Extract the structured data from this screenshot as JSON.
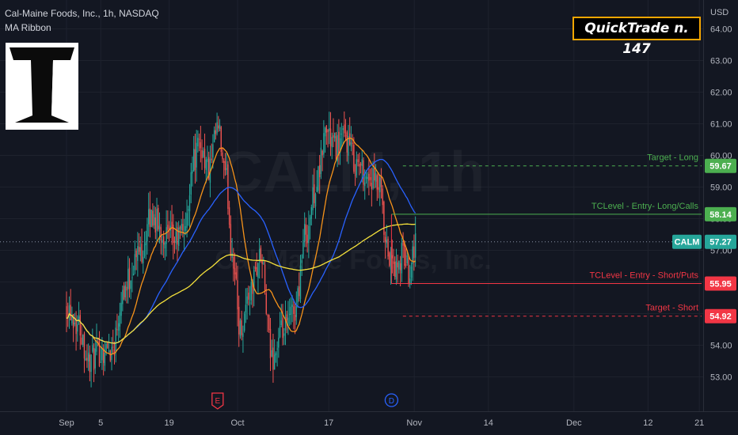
{
  "header": {
    "symbol_line": "Cal-Maine Foods, Inc., 1h, NASDAQ",
    "indicator": "MA Ribbon"
  },
  "badge": {
    "label": "QuickTrade n. 147"
  },
  "watermark": {
    "ticker": "CALM, 1h",
    "name": "Cal-Maine Foods, Inc."
  },
  "colors": {
    "background": "#131722",
    "up": "#26a69a",
    "down": "#ef5350",
    "ma_fast": "#f7931a",
    "ma_mid": "#2962ff",
    "ma_slow": "#f5e13b",
    "long": "#4caf50",
    "short": "#f23645"
  },
  "chart_data": {
    "type": "candlestick",
    "title": "Cal-Maine Foods, Inc., 1h, NASDAQ",
    "currency_label": "USD",
    "ylim": [
      52.1,
      64.4
    ],
    "y_ticks": [
      53.0,
      54.0,
      55.0,
      56.0,
      57.0,
      58.0,
      59.0,
      60.0,
      61.0,
      62.0,
      63.0,
      64.0
    ],
    "x_ticks": [
      "Sep",
      "5",
      "19",
      "Oct",
      "17",
      "Nov",
      "14",
      "Dec",
      "12",
      "21"
    ],
    "x_tick_days": [
      0,
      6,
      18,
      30,
      46,
      61,
      74,
      89,
      102,
      111
    ],
    "price_path_days": [
      0,
      2,
      4,
      6,
      8,
      10,
      13,
      15,
      17,
      19,
      21,
      22,
      23.5,
      25,
      26.5,
      28,
      29,
      30.5,
      32,
      34,
      36,
      38,
      40,
      42,
      44,
      45.5,
      47,
      49,
      51,
      53,
      55,
      56,
      57,
      58,
      59,
      60,
      61.2
    ],
    "price_path": [
      55.3,
      54.7,
      53.5,
      53.8,
      53.9,
      55.8,
      57.0,
      58.1,
      57.5,
      57.3,
      57.8,
      59.8,
      60.3,
      59.5,
      60.8,
      59.2,
      57.0,
      54.5,
      55.6,
      56.8,
      53.6,
      54.4,
      55.1,
      57.6,
      59.2,
      60.8,
      60.3,
      60.5,
      59.7,
      59.3,
      58.9,
      57.0,
      56.6,
      56.3,
      56.9,
      56.4,
      57.3
    ],
    "levels": [
      {
        "label": "Target - Long",
        "value": 59.67,
        "tag": "59.67",
        "style": "dashed",
        "color": "#4caf50"
      },
      {
        "label": "TCLevel - Entry- Long/Calls",
        "value": 58.14,
        "tag": "58.14",
        "style": "solid",
        "color": "#4caf50"
      },
      {
        "label": "TCLevel - Entry - Short/Puts",
        "value": 55.95,
        "tag": "55.95",
        "style": "solid",
        "color": "#f23645"
      },
      {
        "label": "Target - Short",
        "value": 54.92,
        "tag": "54.92",
        "style": "dashed",
        "color": "#f23645"
      }
    ],
    "last_price": {
      "symbol": "CALM",
      "value": 57.27,
      "tag": "57.27"
    },
    "events": [
      {
        "label": "E",
        "day": 26.5,
        "color": "#f23645"
      },
      {
        "label": "D",
        "day": 57,
        "color": "#2962ff"
      }
    ],
    "series": [
      {
        "type": "moving_average",
        "color": "#f7931a"
      },
      {
        "type": "moving_average",
        "color": "#2962ff"
      },
      {
        "type": "moving_average",
        "color": "#f5e13b"
      }
    ],
    "grid": true
  }
}
